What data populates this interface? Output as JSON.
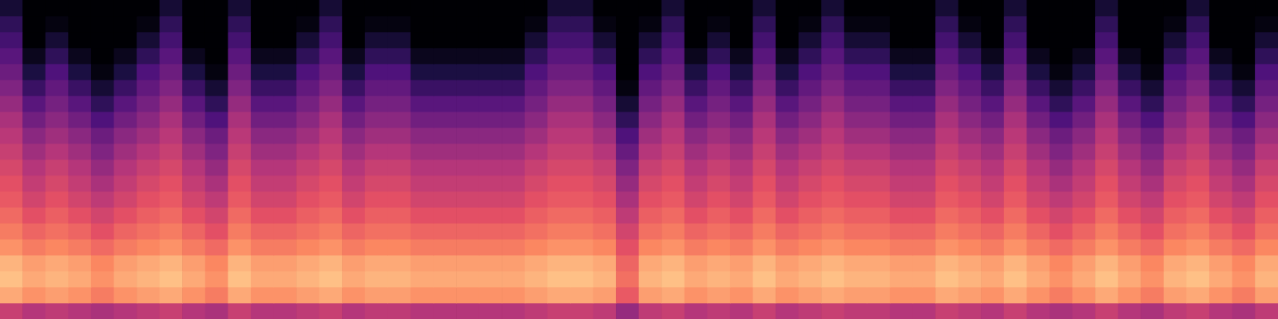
{
  "chart_data": {
    "type": "heatmap",
    "color": "magma",
    "tick_labels": false,
    "zlim": [
      -80,
      0
    ],
    "cells": [
      [
        -72,
        -80,
        -80,
        -80,
        -80,
        -80,
        -80,
        -72,
        -80,
        -80,
        -72,
        -80,
        -80,
        -80,
        -72,
        -80,
        -80,
        -80,
        -80,
        -80,
        -80,
        -80,
        -80,
        -80,
        -72,
        -72,
        -80,
        -80,
        -80,
        -72,
        -80,
        -80,
        -80,
        -72,
        -80,
        -80,
        -72,
        -80,
        -80,
        -80,
        -80,
        -72,
        -80,
        -80,
        -72,
        -80,
        -80,
        -80,
        -72,
        -80,
        -80,
        -80,
        -72,
        -80,
        -80,
        -80
      ],
      [
        -66,
        -80,
        -78,
        -80,
        -80,
        -80,
        -78,
        -66,
        -80,
        -80,
        -66,
        -80,
        -80,
        -78,
        -66,
        -80,
        -78,
        -78,
        -80,
        -80,
        -80,
        -80,
        -80,
        -78,
        -66,
        -66,
        -78,
        -80,
        -78,
        -66,
        -80,
        -78,
        -80,
        -66,
        -80,
        -78,
        -66,
        -78,
        -78,
        -80,
        -80,
        -66,
        -78,
        -80,
        -66,
        -80,
        -80,
        -80,
        -66,
        -80,
        -80,
        -78,
        -66,
        -80,
        -80,
        -78
      ],
      [
        -62,
        -80,
        -72,
        -80,
        -80,
        -80,
        -72,
        -62,
        -80,
        -80,
        -62,
        -80,
        -80,
        -72,
        -62,
        -80,
        -72,
        -72,
        -80,
        -80,
        -80,
        -80,
        -80,
        -72,
        -62,
        -62,
        -72,
        -80,
        -72,
        -62,
        -80,
        -72,
        -80,
        -62,
        -80,
        -72,
        -62,
        -72,
        -72,
        -80,
        -80,
        -62,
        -72,
        -80,
        -62,
        -80,
        -80,
        -80,
        -62,
        -80,
        -80,
        -72,
        -62,
        -80,
        -80,
        -72
      ],
      [
        -58,
        -76,
        -66,
        -76,
        -80,
        -76,
        -66,
        -58,
        -76,
        -80,
        -58,
        -76,
        -76,
        -66,
        -58,
        -76,
        -66,
        -66,
        -76,
        -76,
        -76,
        -76,
        -76,
        -66,
        -58,
        -58,
        -66,
        -80,
        -66,
        -58,
        -76,
        -66,
        -76,
        -58,
        -76,
        -66,
        -58,
        -66,
        -66,
        -76,
        -76,
        -58,
        -66,
        -76,
        -58,
        -76,
        -80,
        -76,
        -58,
        -76,
        -80,
        -66,
        -58,
        -76,
        -80,
        -66
      ],
      [
        -54,
        -70,
        -60,
        -70,
        -78,
        -70,
        -60,
        -54,
        -70,
        -78,
        -54,
        -70,
        -70,
        -60,
        -54,
        -70,
        -60,
        -60,
        -70,
        -70,
        -70,
        -70,
        -70,
        -60,
        -54,
        -54,
        -60,
        -80,
        -60,
        -54,
        -70,
        -60,
        -70,
        -54,
        -70,
        -60,
        -54,
        -60,
        -60,
        -70,
        -70,
        -54,
        -60,
        -70,
        -54,
        -70,
        -78,
        -70,
        -54,
        -70,
        -78,
        -60,
        -54,
        -70,
        -78,
        -60
      ],
      [
        -50,
        -64,
        -56,
        -64,
        -72,
        -64,
        -56,
        -50,
        -64,
        -72,
        -50,
        -64,
        -64,
        -56,
        -50,
        -64,
        -56,
        -56,
        -64,
        -64,
        -64,
        -64,
        -64,
        -56,
        -50,
        -50,
        -56,
        -78,
        -56,
        -50,
        -64,
        -56,
        -64,
        -50,
        -64,
        -56,
        -50,
        -56,
        -56,
        -64,
        -64,
        -50,
        -56,
        -64,
        -50,
        -64,
        -72,
        -64,
        -50,
        -64,
        -72,
        -56,
        -50,
        -64,
        -72,
        -56
      ],
      [
        -46,
        -58,
        -52,
        -58,
        -66,
        -58,
        -52,
        -46,
        -58,
        -66,
        -46,
        -58,
        -58,
        -52,
        -46,
        -58,
        -52,
        -52,
        -58,
        -58,
        -58,
        -58,
        -58,
        -52,
        -46,
        -46,
        -52,
        -72,
        -52,
        -46,
        -58,
        -52,
        -58,
        -46,
        -58,
        -52,
        -46,
        -52,
        -52,
        -58,
        -58,
        -46,
        -52,
        -58,
        -46,
        -58,
        -66,
        -58,
        -46,
        -58,
        -66,
        -52,
        -46,
        -58,
        -66,
        -52
      ],
      [
        -42,
        -53,
        -48,
        -53,
        -60,
        -53,
        -48,
        -42,
        -53,
        -60,
        -42,
        -53,
        -53,
        -48,
        -42,
        -53,
        -48,
        -48,
        -53,
        -53,
        -53,
        -53,
        -53,
        -48,
        -42,
        -42,
        -48,
        -66,
        -48,
        -42,
        -53,
        -48,
        -53,
        -42,
        -53,
        -48,
        -42,
        -48,
        -48,
        -53,
        -53,
        -42,
        -48,
        -53,
        -42,
        -53,
        -60,
        -53,
        -42,
        -53,
        -60,
        -48,
        -42,
        -53,
        -60,
        -48
      ],
      [
        -39,
        -48,
        -44,
        -48,
        -54,
        -48,
        -44,
        -39,
        -48,
        -54,
        -39,
        -48,
        -48,
        -44,
        -39,
        -48,
        -44,
        -44,
        -48,
        -48,
        -48,
        -48,
        -48,
        -44,
        -39,
        -39,
        -44,
        -60,
        -44,
        -39,
        -48,
        -44,
        -48,
        -39,
        -48,
        -44,
        -39,
        -44,
        -44,
        -48,
        -48,
        -39,
        -44,
        -48,
        -39,
        -48,
        -54,
        -48,
        -39,
        -48,
        -54,
        -44,
        -39,
        -48,
        -54,
        -44
      ],
      [
        -36,
        -44,
        -40,
        -44,
        -50,
        -44,
        -40,
        -36,
        -44,
        -50,
        -36,
        -44,
        -44,
        -40,
        -36,
        -44,
        -40,
        -40,
        -44,
        -44,
        -44,
        -44,
        -44,
        -40,
        -36,
        -36,
        -40,
        -55,
        -40,
        -36,
        -44,
        -40,
        -44,
        -36,
        -44,
        -40,
        -36,
        -40,
        -40,
        -44,
        -44,
        -36,
        -40,
        -44,
        -36,
        -44,
        -50,
        -44,
        -36,
        -44,
        -50,
        -40,
        -36,
        -44,
        -50,
        -40
      ],
      [
        -33,
        -40,
        -36,
        -40,
        -46,
        -40,
        -36,
        -33,
        -40,
        -46,
        -33,
        -40,
        -40,
        -36,
        -33,
        -40,
        -36,
        -36,
        -40,
        -40,
        -40,
        -40,
        -40,
        -36,
        -33,
        -33,
        -36,
        -50,
        -36,
        -33,
        -40,
        -36,
        -40,
        -33,
        -40,
        -36,
        -33,
        -36,
        -36,
        -40,
        -40,
        -33,
        -36,
        -40,
        -33,
        -40,
        -46,
        -40,
        -33,
        -40,
        -46,
        -36,
        -33,
        -40,
        -46,
        -36
      ],
      [
        -30,
        -37,
        -33,
        -37,
        -42,
        -37,
        -33,
        -30,
        -37,
        -42,
        -30,
        -37,
        -37,
        -33,
        -30,
        -37,
        -33,
        -33,
        -37,
        -37,
        -37,
        -37,
        -37,
        -33,
        -30,
        -30,
        -33,
        -46,
        -33,
        -30,
        -37,
        -33,
        -37,
        -30,
        -37,
        -33,
        -30,
        -33,
        -33,
        -37,
        -37,
        -30,
        -33,
        -37,
        -30,
        -37,
        -42,
        -37,
        -30,
        -37,
        -42,
        -33,
        -30,
        -37,
        -42,
        -33
      ],
      [
        -28,
        -34,
        -30,
        -34,
        -38,
        -34,
        -30,
        -28,
        -34,
        -38,
        -28,
        -34,
        -34,
        -30,
        -28,
        -34,
        -30,
        -30,
        -34,
        -34,
        -34,
        -34,
        -34,
        -30,
        -28,
        -28,
        -30,
        -42,
        -30,
        -28,
        -34,
        -30,
        -34,
        -28,
        -34,
        -30,
        -28,
        -30,
        -30,
        -34,
        -34,
        -28,
        -30,
        -34,
        -28,
        -34,
        -38,
        -34,
        -28,
        -34,
        -38,
        -30,
        -28,
        -34,
        -38,
        -30
      ],
      [
        -25,
        -30,
        -27,
        -30,
        -34,
        -30,
        -27,
        -25,
        -30,
        -34,
        -25,
        -30,
        -30,
        -27,
        -25,
        -30,
        -27,
        -27,
        -30,
        -30,
        -30,
        -30,
        -30,
        -27,
        -25,
        -25,
        -27,
        -38,
        -27,
        -25,
        -30,
        -27,
        -30,
        -25,
        -30,
        -27,
        -25,
        -27,
        -27,
        -30,
        -30,
        -25,
        -27,
        -30,
        -25,
        -30,
        -34,
        -30,
        -25,
        -30,
        -34,
        -27,
        -25,
        -30,
        -34,
        -27
      ],
      [
        -22,
        -26,
        -24,
        -26,
        -30,
        -26,
        -24,
        -22,
        -26,
        -30,
        -22,
        -26,
        -26,
        -24,
        -22,
        -26,
        -24,
        -24,
        -26,
        -26,
        -26,
        -26,
        -26,
        -24,
        -22,
        -22,
        -24,
        -34,
        -24,
        -22,
        -26,
        -24,
        -26,
        -22,
        -26,
        -24,
        -22,
        -24,
        -24,
        -26,
        -26,
        -22,
        -24,
        -26,
        -22,
        -26,
        -30,
        -26,
        -22,
        -26,
        -30,
        -24,
        -22,
        -26,
        -30,
        -24
      ],
      [
        -18,
        -22,
        -20,
        -22,
        -25,
        -22,
        -20,
        -18,
        -22,
        -25,
        -18,
        -22,
        -22,
        -20,
        -18,
        -22,
        -20,
        -20,
        -22,
        -22,
        -22,
        -22,
        -22,
        -20,
        -18,
        -18,
        -20,
        -30,
        -20,
        -18,
        -22,
        -20,
        -22,
        -18,
        -22,
        -20,
        -18,
        -20,
        -20,
        -22,
        -22,
        -18,
        -20,
        -22,
        -18,
        -22,
        -25,
        -22,
        -18,
        -22,
        -25,
        -20,
        -18,
        -22,
        -25,
        -20
      ],
      [
        -12,
        -16,
        -14,
        -16,
        -20,
        -16,
        -14,
        -12,
        -16,
        -20,
        -12,
        -16,
        -16,
        -14,
        -12,
        -16,
        -14,
        -14,
        -16,
        -16,
        -16,
        -16,
        -16,
        -14,
        -12,
        -12,
        -14,
        -26,
        -14,
        -12,
        -16,
        -14,
        -16,
        -12,
        -16,
        -14,
        -12,
        -14,
        -14,
        -16,
        -16,
        -12,
        -14,
        -16,
        -12,
        -16,
        -20,
        -16,
        -12,
        -16,
        -20,
        -14,
        -12,
        -16,
        -20,
        -14
      ],
      [
        -10,
        -14,
        -12,
        -14,
        -18,
        -14,
        -12,
        -10,
        -14,
        -18,
        -10,
        -14,
        -14,
        -12,
        -10,
        -14,
        -12,
        -12,
        -14,
        -14,
        -14,
        -14,
        -14,
        -12,
        -10,
        -10,
        -12,
        -24,
        -12,
        -10,
        -14,
        -12,
        -14,
        -10,
        -14,
        -12,
        -10,
        -12,
        -12,
        -14,
        -14,
        -10,
        -12,
        -14,
        -10,
        -14,
        -18,
        -14,
        -10,
        -14,
        -18,
        -12,
        -10,
        -14,
        -18,
        -12
      ],
      [
        -14,
        -18,
        -16,
        -18,
        -22,
        -18,
        -16,
        -14,
        -18,
        -22,
        -14,
        -18,
        -18,
        -16,
        -14,
        -18,
        -16,
        -16,
        -18,
        -18,
        -18,
        -18,
        -18,
        -16,
        -14,
        -14,
        -16,
        -28,
        -16,
        -14,
        -18,
        -16,
        -18,
        -14,
        -18,
        -16,
        -14,
        -16,
        -16,
        -18,
        -18,
        -14,
        -16,
        -18,
        -14,
        -18,
        -22,
        -18,
        -14,
        -18,
        -22,
        -16,
        -14,
        -18,
        -22,
        -16
      ],
      [
        -36,
        -40,
        -38,
        -40,
        -42,
        -40,
        -38,
        -36,
        -40,
        -42,
        -36,
        -40,
        -40,
        -38,
        -36,
        -40,
        -38,
        -38,
        -40,
        -40,
        -40,
        -40,
        -40,
        -38,
        -36,
        -36,
        -38,
        -46,
        -38,
        -36,
        -40,
        -38,
        -40,
        -36,
        -40,
        -38,
        -36,
        -38,
        -38,
        -40,
        -40,
        -36,
        -38,
        -40,
        -36,
        -40,
        -42,
        -40,
        -36,
        -40,
        -42,
        -38,
        -36,
        -40,
        -42,
        -38
      ]
    ]
  }
}
